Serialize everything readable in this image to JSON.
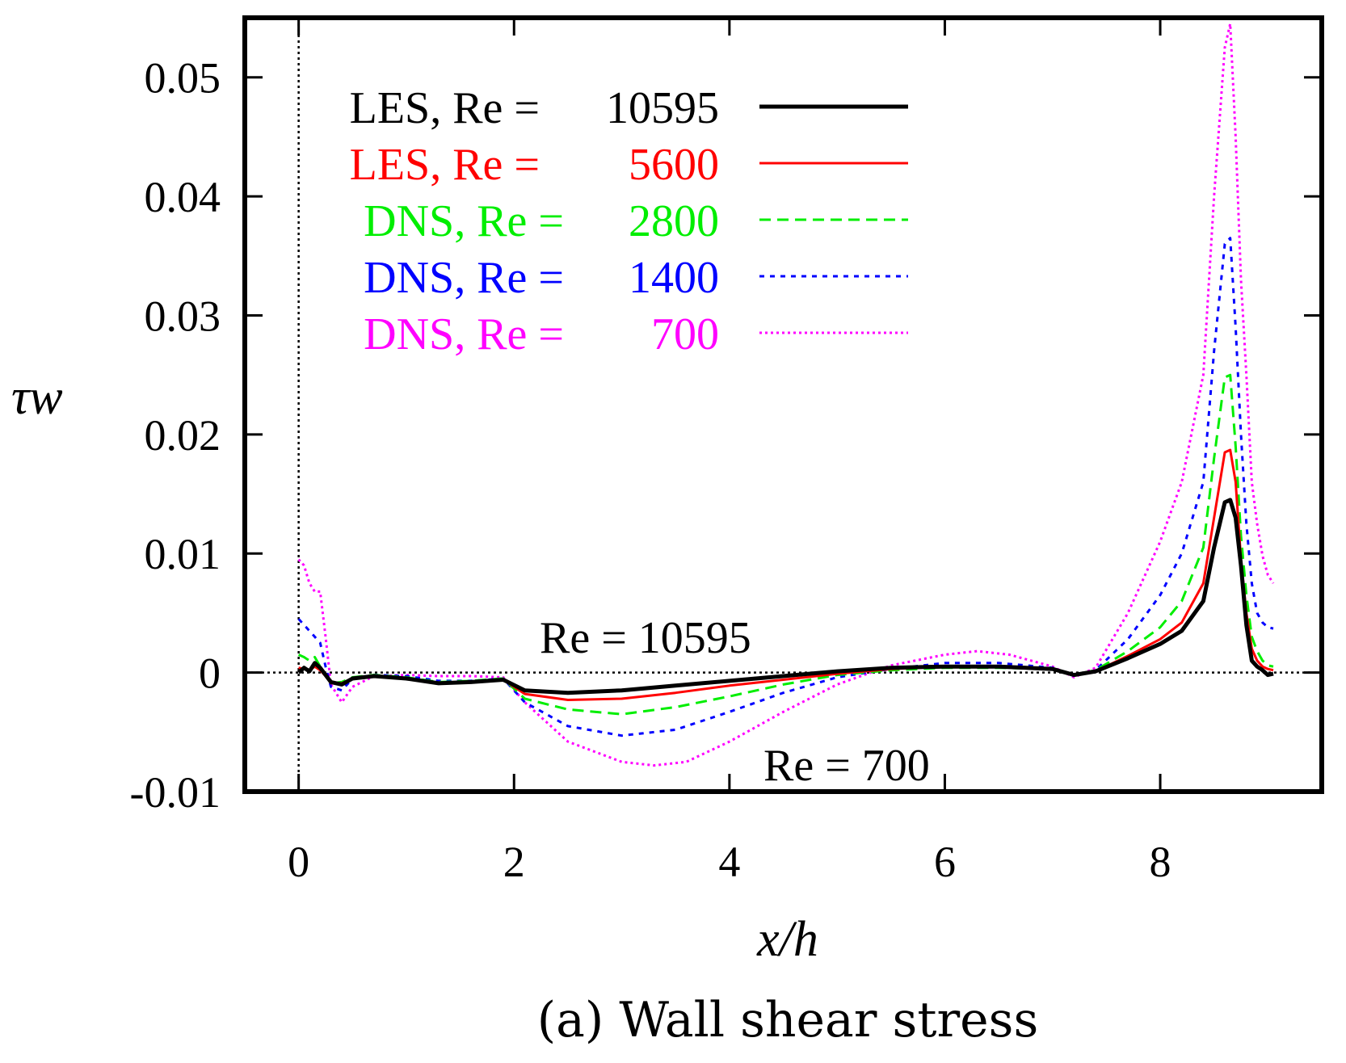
{
  "chart_data": {
    "type": "line",
    "xlabel": "x/h",
    "ylabel": "τw",
    "caption": "(a) Wall shear stress",
    "xlim": [
      -0.5,
      9.5
    ],
    "ylim": [
      -0.01,
      0.055
    ],
    "xticks": [
      0,
      2,
      4,
      6,
      8
    ],
    "yticks": [
      -0.01,
      0,
      0.01,
      0.02,
      0.03,
      0.04,
      0.05
    ],
    "xtick_labels": [
      "0",
      "2",
      "4",
      "6",
      "8"
    ],
    "ytick_labels": [
      "-0.01",
      "0",
      "0.01",
      "0.02",
      "0.03",
      "0.04",
      "0.05"
    ],
    "grid": false,
    "legend_position": "top-left",
    "reference_lines": [
      {
        "axis": "y",
        "value": 0,
        "style": "dotted"
      },
      {
        "axis": "x",
        "value": 0,
        "style": "dotted"
      }
    ],
    "annotations": [
      {
        "text": "Re = 10595",
        "x": 3.4,
        "y": 0.0012
      },
      {
        "text": "Re = 700",
        "x": 5.3,
        "y": -0.0065
      }
    ],
    "series": [
      {
        "name": "LES, Re = 10595",
        "legend_prefix": "LES, Re =",
        "legend_value": "10595",
        "color": "#000000",
        "dash": "solid",
        "width": 5,
        "x": [
          0.0,
          0.05,
          0.1,
          0.15,
          0.2,
          0.25,
          0.3,
          0.4,
          0.5,
          0.7,
          1.0,
          1.3,
          1.6,
          1.9,
          2.1,
          2.5,
          3.0,
          3.5,
          4.0,
          4.5,
          5.0,
          5.5,
          6.0,
          6.5,
          7.0,
          7.2,
          7.4,
          7.7,
          8.0,
          8.2,
          8.4,
          8.5,
          8.6,
          8.65,
          8.7,
          8.75,
          8.8,
          8.85,
          8.9,
          8.95,
          9.0,
          9.05
        ],
        "y": [
          0.0,
          0.0004,
          0.0001,
          0.0008,
          0.0004,
          -0.0002,
          -0.0008,
          -0.001,
          -0.0005,
          -0.0003,
          -0.0005,
          -0.0009,
          -0.0008,
          -0.0006,
          -0.0015,
          -0.0017,
          -0.0015,
          -0.0011,
          -0.0007,
          -0.0003,
          0.0001,
          0.0004,
          0.0005,
          0.0005,
          0.0003,
          -0.0002,
          0.0001,
          0.0012,
          0.0024,
          0.0035,
          0.006,
          0.0105,
          0.0143,
          0.0145,
          0.013,
          0.009,
          0.004,
          0.001,
          0.0005,
          0.0002,
          -0.0002,
          -0.0001
        ]
      },
      {
        "name": "LES, Re = 5600",
        "legend_prefix": "LES, Re =",
        "legend_value": "5600",
        "color": "#ff0000",
        "dash": "solid",
        "width": 3,
        "x": [
          0.0,
          0.05,
          0.1,
          0.15,
          0.2,
          0.25,
          0.3,
          0.4,
          0.5,
          0.7,
          1.0,
          1.3,
          1.6,
          1.9,
          2.1,
          2.5,
          3.0,
          3.5,
          4.0,
          4.5,
          5.0,
          5.5,
          6.0,
          6.5,
          7.0,
          7.2,
          7.4,
          7.7,
          8.0,
          8.2,
          8.4,
          8.5,
          8.6,
          8.65,
          8.7,
          8.75,
          8.8,
          8.85,
          8.9,
          8.95,
          9.0,
          9.05
        ],
        "y": [
          0.0004,
          0.0003,
          0.0002,
          0.0005,
          0.0002,
          -0.0003,
          -0.0009,
          -0.0009,
          -0.0005,
          -0.0003,
          -0.0005,
          -0.0009,
          -0.0008,
          -0.0006,
          -0.0018,
          -0.0023,
          -0.0022,
          -0.0017,
          -0.0011,
          -0.0006,
          -0.0001,
          0.0003,
          0.0005,
          0.0005,
          0.0003,
          -0.0002,
          0.0001,
          0.0014,
          0.0028,
          0.0042,
          0.0075,
          0.013,
          0.0185,
          0.0187,
          0.016,
          0.0095,
          0.005,
          0.002,
          0.001,
          0.0005,
          0.0003,
          0.0002
        ]
      },
      {
        "name": "DNS, Re = 2800",
        "legend_prefix": "DNS, Re =",
        "legend_value": "2800",
        "color": "#00ee00",
        "dash": "14,8",
        "width": 3,
        "x": [
          0.0,
          0.05,
          0.1,
          0.15,
          0.2,
          0.25,
          0.3,
          0.4,
          0.5,
          0.7,
          1.0,
          1.3,
          1.6,
          1.9,
          2.1,
          2.5,
          3.0,
          3.5,
          4.0,
          4.5,
          5.0,
          5.5,
          6.0,
          6.5,
          7.0,
          7.2,
          7.4,
          7.7,
          8.0,
          8.2,
          8.4,
          8.5,
          8.6,
          8.65,
          8.7,
          8.75,
          8.8,
          8.85,
          8.9,
          8.95,
          9.0,
          9.05
        ],
        "y": [
          0.0015,
          0.0013,
          0.001,
          0.0013,
          0.0005,
          -0.0003,
          -0.0009,
          -0.0008,
          -0.0004,
          -0.0002,
          -0.0004,
          -0.0008,
          -0.0007,
          -0.0005,
          -0.0022,
          -0.0031,
          -0.0035,
          -0.0029,
          -0.002,
          -0.001,
          -0.0002,
          0.0002,
          0.0004,
          0.0004,
          0.0003,
          -0.0002,
          0.0002,
          0.0018,
          0.0038,
          0.006,
          0.0105,
          0.018,
          0.0248,
          0.025,
          0.019,
          0.0115,
          0.0065,
          0.003,
          0.0018,
          0.001,
          0.0006,
          0.0005
        ]
      },
      {
        "name": "DNS, Re = 1400",
        "legend_prefix": "DNS, Re =",
        "legend_value": "1400",
        "color": "#0000ff",
        "dash": "6,7",
        "width": 3,
        "x": [
          0.0,
          0.05,
          0.1,
          0.15,
          0.2,
          0.25,
          0.3,
          0.4,
          0.5,
          0.7,
          1.0,
          1.3,
          1.6,
          1.9,
          2.1,
          2.5,
          3.0,
          3.5,
          4.0,
          4.5,
          5.0,
          5.5,
          6.0,
          6.5,
          7.0,
          7.2,
          7.4,
          7.7,
          8.0,
          8.2,
          8.4,
          8.5,
          8.6,
          8.65,
          8.7,
          8.75,
          8.8,
          8.85,
          8.9,
          8.95,
          9.0,
          9.05
        ],
        "y": [
          0.0045,
          0.004,
          0.0035,
          0.003,
          0.0025,
          0.0005,
          -0.0012,
          -0.0015,
          -0.0005,
          -0.0002,
          -0.0003,
          -0.0007,
          -0.0007,
          -0.0005,
          -0.0025,
          -0.0045,
          -0.0053,
          -0.0048,
          -0.0033,
          -0.0017,
          -0.0004,
          0.0003,
          0.0008,
          0.0008,
          0.0004,
          -0.0003,
          0.0002,
          0.0028,
          0.0065,
          0.01,
          0.016,
          0.027,
          0.036,
          0.0365,
          0.029,
          0.02,
          0.0125,
          0.0075,
          0.005,
          0.0042,
          0.0038,
          0.0037
        ]
      },
      {
        "name": "DNS, Re = 700",
        "legend_prefix": "DNS, Re =",
        "legend_value": "700",
        "color": "#ff00ff",
        "dash": "3,4",
        "width": 3,
        "x": [
          0.0,
          0.05,
          0.1,
          0.15,
          0.2,
          0.25,
          0.3,
          0.4,
          0.5,
          0.7,
          1.0,
          1.3,
          1.6,
          1.9,
          2.1,
          2.5,
          3.0,
          3.3,
          3.6,
          4.0,
          4.5,
          5.0,
          5.5,
          6.0,
          6.3,
          6.6,
          7.0,
          7.2,
          7.4,
          7.7,
          8.0,
          8.2,
          8.4,
          8.5,
          8.6,
          8.65,
          8.7,
          8.75,
          8.8,
          8.85,
          8.9,
          8.95,
          9.0,
          9.05
        ],
        "y": [
          0.0095,
          0.009,
          0.0075,
          0.0068,
          0.0068,
          0.003,
          -0.001,
          -0.0025,
          -0.0012,
          -0.0003,
          -0.0002,
          -0.0003,
          -0.0003,
          -0.0004,
          -0.0025,
          -0.0058,
          -0.0075,
          -0.0078,
          -0.0075,
          -0.0058,
          -0.0033,
          -0.001,
          0.0006,
          0.0015,
          0.0018,
          0.0015,
          0.0005,
          -0.0004,
          0.0004,
          0.005,
          0.011,
          0.016,
          0.025,
          0.04,
          0.0525,
          0.0545,
          0.045,
          0.033,
          0.025,
          0.016,
          0.0125,
          0.0098,
          0.0082,
          0.0075
        ]
      }
    ]
  }
}
